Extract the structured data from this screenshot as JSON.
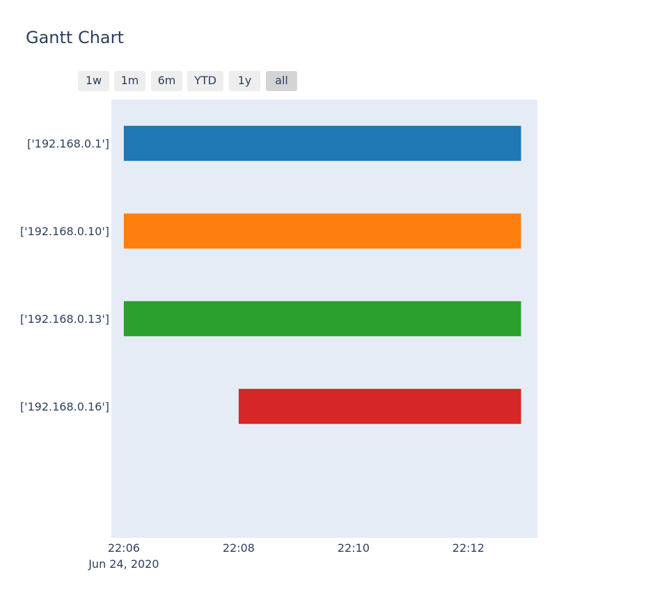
{
  "title": "Gantt Chart",
  "range_selector": {
    "buttons": [
      "1w",
      "1m",
      "6m",
      "YTD",
      "1y",
      "all"
    ],
    "active": "all"
  },
  "colors": {
    "plot_bg": "#e5ecf6",
    "text": "#2a3f5f"
  },
  "chart_data": {
    "type": "gantt",
    "title": "Gantt Chart",
    "xlabel": "",
    "ylabel": "",
    "x_axis_type": "date",
    "x_range": [
      "2020-06-24 22:05:47",
      "2020-06-24 22:13:12"
    ],
    "x_ticks": [
      "22:06",
      "22:08",
      "22:10",
      "22:12"
    ],
    "x_tick_date_label": "Jun 24, 2020",
    "tasks": [
      {
        "label": "['192.168.0.1']",
        "start": "2020-06-24 22:06:00",
        "end": "2020-06-24 22:12:55",
        "color": "#1f77b4"
      },
      {
        "label": "['192.168.0.10']",
        "start": "2020-06-24 22:06:00",
        "end": "2020-06-24 22:12:55",
        "color": "#ff7f0e"
      },
      {
        "label": "['192.168.0.13']",
        "start": "2020-06-24 22:06:00",
        "end": "2020-06-24 22:12:55",
        "color": "#2ca02c"
      },
      {
        "label": "['192.168.0.16']",
        "start": "2020-06-24 22:08:00",
        "end": "2020-06-24 22:12:55",
        "color": "#d62728"
      }
    ],
    "grid": false,
    "legend": "none"
  }
}
